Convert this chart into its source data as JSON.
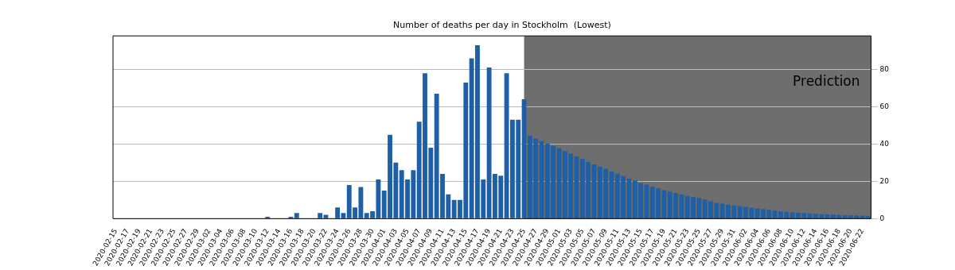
{
  "chart_data": {
    "type": "bar",
    "title": "Number of deaths per day in Stockholm  (Lowest)",
    "categories": [
      "2020-02-15",
      null,
      "2020-02-17",
      null,
      "2020-02-19",
      null,
      "2020-02-21",
      null,
      "2020-02-23",
      null,
      "2020-02-25",
      null,
      "2020-02-27",
      null,
      "2020-02-29",
      null,
      "2020-03-02",
      null,
      "2020-03-04",
      null,
      "2020-03-06",
      null,
      "2020-03-08",
      null,
      "2020-03-10",
      null,
      "2020-03-12",
      null,
      "2020-03-14",
      null,
      "2020-03-16",
      null,
      "2020-03-18",
      null,
      "2020-03-20",
      null,
      "2020-03-22",
      null,
      "2020-03-24",
      null,
      "2020-03-26",
      null,
      "2020-03-28",
      null,
      "2020-03-30",
      null,
      "2020-04-01",
      null,
      "2020-04-03",
      null,
      "2020-04-05",
      null,
      "2020-04-07",
      null,
      "2020-04-09",
      null,
      "2020-04-11",
      null,
      "2020-04-13",
      null,
      "2020-04-15",
      null,
      "2020-04-17",
      null,
      "2020-04-19",
      null,
      "2020-04-21",
      null,
      "2020-04-23",
      null,
      "2020-04-25",
      null,
      "2020-04-27",
      null,
      "2020-04-29",
      null,
      "2020-05-01",
      null,
      "2020-05-03",
      null,
      "2020-05-05",
      null,
      "2020-05-07",
      null,
      "2020-05-09",
      null,
      "2020-05-11",
      null,
      "2020-05-13",
      null,
      "2020-05-15",
      null,
      "2020-05-17",
      null,
      "2020-05-19",
      null,
      "2020-05-21",
      null,
      "2020-05-23",
      null,
      "2020-05-25",
      null,
      "2020-05-27",
      null,
      "2020-05-29",
      null,
      "2020-05-31",
      null,
      "2020-06-02",
      null,
      "2020-06-04",
      null,
      "2020-06-06",
      null,
      "2020-06-08",
      null,
      "2020-06-10",
      null,
      "2020-06-12",
      null,
      "2020-06-14",
      null,
      "2020-06-16",
      null,
      "2020-06-18",
      null,
      "2020-06-20",
      null,
      "2020-06-22",
      null
    ],
    "values": [
      0,
      0,
      0,
      0,
      0,
      0,
      0,
      0,
      0,
      0,
      0,
      0,
      0,
      0,
      0,
      0,
      0,
      0,
      0,
      0,
      0,
      0,
      0,
      0,
      0,
      0,
      1,
      0,
      0,
      0,
      1,
      3,
      0,
      0,
      0,
      3,
      2,
      0,
      6,
      3,
      18,
      6,
      17,
      3,
      4,
      21,
      15,
      45,
      30,
      26,
      21,
      26,
      52,
      78,
      38,
      67,
      24,
      13,
      10,
      10,
      73,
      86,
      93,
      21,
      81,
      24,
      23,
      78,
      53,
      53,
      64,
      44.5,
      42.9,
      41.6,
      40.3,
      39,
      37.8,
      36.2,
      34.8,
      33.3,
      32,
      30.5,
      29.1,
      27.9,
      26.7,
      25.3,
      24.1,
      22.8,
      21.4,
      20.5,
      19.1,
      18.2,
      17.2,
      16.3,
      15.3,
      14.5,
      13.8,
      13,
      12.2,
      11.6,
      11.1,
      10.3,
      9.3,
      8.4,
      8,
      7.5,
      7.1,
      6.7,
      6.3,
      5.9,
      5.5,
      5.1,
      4.7,
      4.3,
      4,
      3.7,
      3.4,
      3.2,
      3,
      2.8,
      2.6,
      2.4,
      2.3,
      2.1,
      2,
      1.9,
      1.8,
      1.7,
      1.6,
      1.4
    ],
    "color": "#1f5fa6",
    "ylim": [
      0,
      98
    ],
    "yticks": [
      0,
      20,
      40,
      60,
      80
    ],
    "grid": "y",
    "legend": false,
    "annotations": [
      "Prediction"
    ]
  }
}
